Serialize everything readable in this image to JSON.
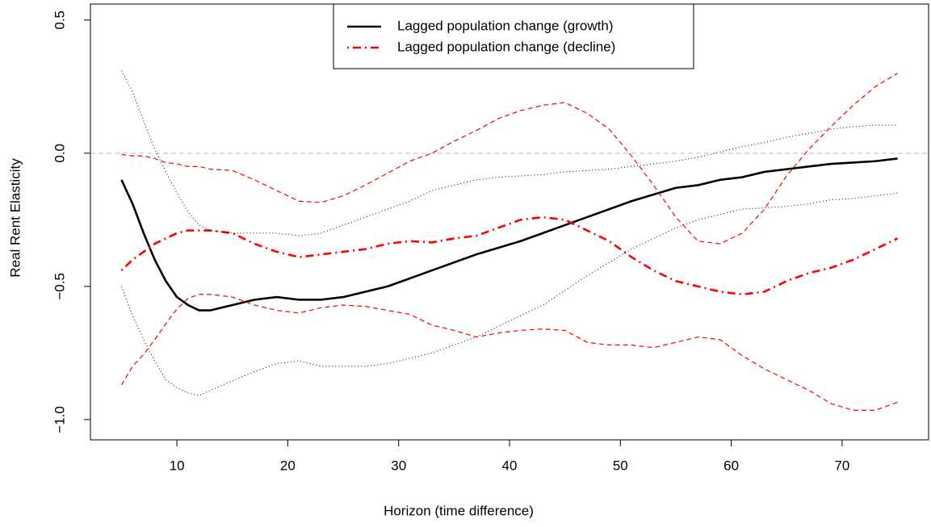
{
  "chart_data": {
    "type": "line",
    "xlabel": "Horizon (time difference)",
    "ylabel": "Real Rent Elasticity",
    "x": [
      5,
      6,
      7,
      8,
      9,
      10,
      11,
      12,
      13,
      15,
      17,
      19,
      21,
      23,
      25,
      27,
      29,
      31,
      33,
      35,
      37,
      39,
      41,
      43,
      45,
      47,
      49,
      51,
      53,
      55,
      57,
      59,
      61,
      63,
      65,
      67,
      69,
      71,
      73,
      75
    ],
    "series": [
      {
        "name": "Lagged population change (growth)",
        "color": "#000000",
        "line_style": "solid",
        "values": [
          -0.1,
          -0.19,
          -0.3,
          -0.4,
          -0.48,
          -0.54,
          -0.57,
          -0.59,
          -0.59,
          -0.57,
          -0.55,
          -0.54,
          -0.55,
          -0.55,
          -0.54,
          -0.52,
          -0.5,
          -0.47,
          -0.44,
          -0.41,
          -0.38,
          -0.355,
          -0.33,
          -0.3,
          -0.27,
          -0.24,
          -0.21,
          -0.18,
          -0.155,
          -0.13,
          -0.12,
          -0.1,
          -0.09,
          -0.07,
          -0.06,
          -0.05,
          -0.04,
          -0.035,
          -0.03,
          -0.02
        ]
      },
      {
        "name": "Lagged population change (decline)",
        "color": "#ff0000",
        "line_style": "dotdash",
        "values": [
          -0.44,
          -0.4,
          -0.37,
          -0.34,
          -0.32,
          -0.3,
          -0.29,
          -0.29,
          -0.29,
          -0.3,
          -0.34,
          -0.37,
          -0.39,
          -0.38,
          -0.37,
          -0.36,
          -0.34,
          -0.33,
          -0.335,
          -0.32,
          -0.31,
          -0.28,
          -0.25,
          -0.24,
          -0.25,
          -0.29,
          -0.33,
          -0.39,
          -0.44,
          -0.48,
          -0.5,
          -0.52,
          -0.53,
          -0.52,
          -0.48,
          -0.45,
          -0.43,
          -0.4,
          -0.36,
          -0.32
        ]
      },
      {
        "color": "#000000",
        "line_style": "dotted",
        "values": [
          0.31,
          0.23,
          0.12,
          0.015,
          -0.07,
          -0.15,
          -0.22,
          -0.27,
          -0.29,
          -0.3,
          -0.3,
          -0.3,
          -0.31,
          -0.3,
          -0.27,
          -0.24,
          -0.21,
          -0.18,
          -0.14,
          -0.12,
          -0.1,
          -0.09,
          -0.085,
          -0.08,
          -0.07,
          -0.065,
          -0.06,
          -0.05,
          -0.04,
          -0.03,
          -0.015,
          0.005,
          0.025,
          0.04,
          0.06,
          0.075,
          0.09,
          0.1,
          0.105,
          0.105
        ]
      },
      {
        "color": "#000000",
        "line_style": "dotted",
        "values": [
          -0.5,
          -0.61,
          -0.7,
          -0.78,
          -0.85,
          -0.88,
          -0.9,
          -0.91,
          -0.89,
          -0.855,
          -0.82,
          -0.79,
          -0.78,
          -0.8,
          -0.8,
          -0.8,
          -0.79,
          -0.77,
          -0.75,
          -0.72,
          -0.69,
          -0.65,
          -0.61,
          -0.57,
          -0.515,
          -0.46,
          -0.41,
          -0.36,
          -0.32,
          -0.28,
          -0.25,
          -0.23,
          -0.21,
          -0.205,
          -0.2,
          -0.19,
          -0.175,
          -0.17,
          -0.16,
          -0.15
        ]
      },
      {
        "color": "#ff0000",
        "line_style": "dashed",
        "values": [
          -0.005,
          -0.01,
          -0.01,
          -0.02,
          -0.035,
          -0.04,
          -0.05,
          -0.05,
          -0.06,
          -0.065,
          -0.1,
          -0.14,
          -0.18,
          -0.185,
          -0.16,
          -0.12,
          -0.075,
          -0.03,
          0.0,
          0.045,
          0.085,
          0.13,
          0.16,
          0.18,
          0.19,
          0.15,
          0.09,
          -0.01,
          -0.12,
          -0.24,
          -0.33,
          -0.34,
          -0.3,
          -0.21,
          -0.085,
          0.015,
          0.1,
          0.18,
          0.25,
          0.3
        ]
      },
      {
        "color": "#ff0000",
        "line_style": "dashed",
        "values": [
          -0.87,
          -0.8,
          -0.755,
          -0.7,
          -0.64,
          -0.585,
          -0.545,
          -0.53,
          -0.53,
          -0.54,
          -0.57,
          -0.59,
          -0.6,
          -0.58,
          -0.57,
          -0.575,
          -0.59,
          -0.605,
          -0.645,
          -0.665,
          -0.69,
          -0.675,
          -0.665,
          -0.66,
          -0.665,
          -0.71,
          -0.72,
          -0.72,
          -0.73,
          -0.71,
          -0.69,
          -0.7,
          -0.76,
          -0.81,
          -0.85,
          -0.89,
          -0.94,
          -0.965,
          -0.965,
          -0.935
        ]
      }
    ],
    "hline": {
      "value": 0,
      "color": "#bbbbbb",
      "line_style": "dashed"
    },
    "xlim": [
      2.2,
      77.8
    ],
    "xticks": [
      10,
      20,
      30,
      40,
      50,
      60,
      70
    ],
    "ylim": [
      -1.076,
      0.56
    ],
    "yticks": [
      {
        "value": -1.0,
        "label": "−1.0"
      },
      {
        "value": -0.5,
        "label": "−0.5"
      },
      {
        "value": 0,
        "label": "0.0"
      },
      0.5
    ],
    "legend": "top",
    "grid": false
  }
}
